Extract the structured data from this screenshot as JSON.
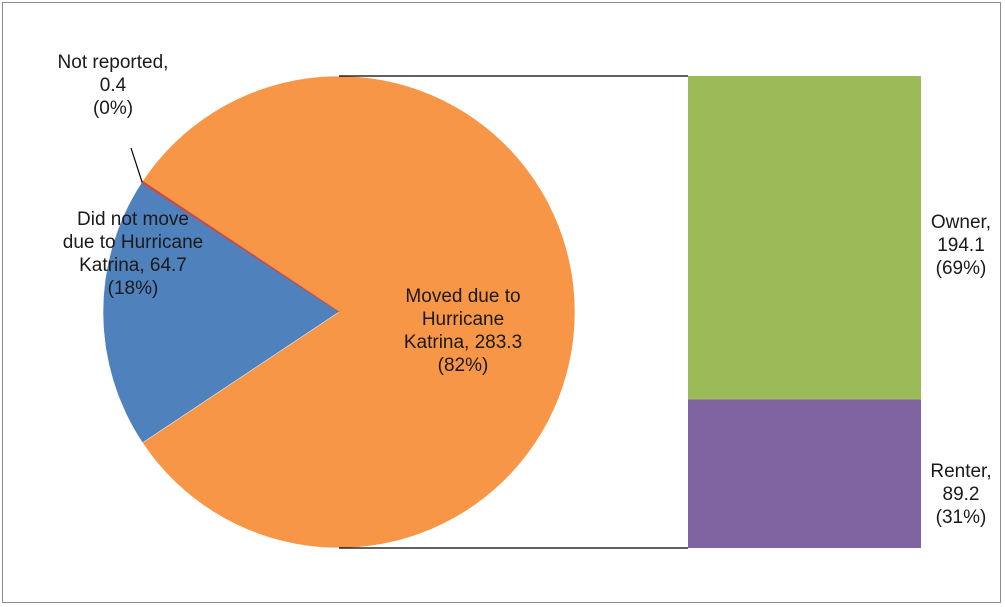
{
  "chart_data": {
    "type": "pie",
    "variant": "bar-of-pie",
    "title": "",
    "pie": {
      "slices": [
        {
          "name": "Moved due to Hurricane Katrina",
          "value": 283.3,
          "percent": "82%",
          "color": "#F79646",
          "label_lines": [
            "Moved due to",
            "Hurricane",
            "Katrina, 283.3",
            "(82%)"
          ]
        },
        {
          "name": "Did not move due to Hurricane Katrina",
          "value": 64.7,
          "percent": "18%",
          "color": "#4F81BD",
          "label_lines": [
            "Did not move",
            "due to Hurricane",
            "Katrina, 64.7",
            "(18%)"
          ]
        },
        {
          "name": "Not reported",
          "value": 0.4,
          "percent": "0%",
          "color": "#C0504D",
          "label_lines": [
            "Not reported,",
            "0.4",
            "(0%)"
          ]
        }
      ]
    },
    "bar": {
      "segments": [
        {
          "name": "Owner",
          "value": 194.1,
          "percent": "69%",
          "color": "#9BBB59",
          "label_lines": [
            "Owner,",
            "194.1",
            "(69%)"
          ]
        },
        {
          "name": "Renter",
          "value": 89.2,
          "percent": "31%",
          "color": "#8064A2",
          "label_lines": [
            "Renter,",
            "89.2",
            "(31%)"
          ]
        }
      ]
    },
    "legend": "none",
    "connector_lines": true
  }
}
